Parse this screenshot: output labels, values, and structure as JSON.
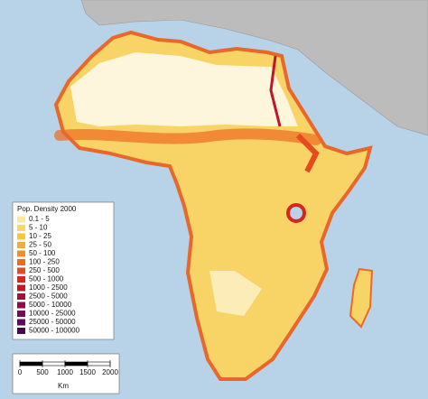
{
  "legend": {
    "title": "Pop. Density 2000",
    "items": [
      {
        "label": "0.1 - 5",
        "color": "#fde99a"
      },
      {
        "label": "5 - 10",
        "color": "#f9d862"
      },
      {
        "label": "10 - 25",
        "color": "#f6c63e"
      },
      {
        "label": "25 - 50",
        "color": "#f3aa3a"
      },
      {
        "label": "50 - 100",
        "color": "#f28c2c"
      },
      {
        "label": "100 - 250",
        "color": "#ec6b22"
      },
      {
        "label": "250 - 500",
        "color": "#e44c1e"
      },
      {
        "label": "500 - 1000",
        "color": "#d6281f"
      },
      {
        "label": "1000 - 2500",
        "color": "#c0172b"
      },
      {
        "label": "2500 - 5000",
        "color": "#a60f3b"
      },
      {
        "label": "5000 - 10000",
        "color": "#8e0c4a"
      },
      {
        "label": "10000 - 25000",
        "color": "#770a55"
      },
      {
        "label": "25000 - 50000",
        "color": "#5f0a5c"
      },
      {
        "label": "50000 - 100000",
        "color": "#47074f"
      }
    ]
  },
  "scale_bar": {
    "ticks": [
      0,
      500,
      1000,
      1500,
      2000
    ],
    "unit": "Km"
  }
}
